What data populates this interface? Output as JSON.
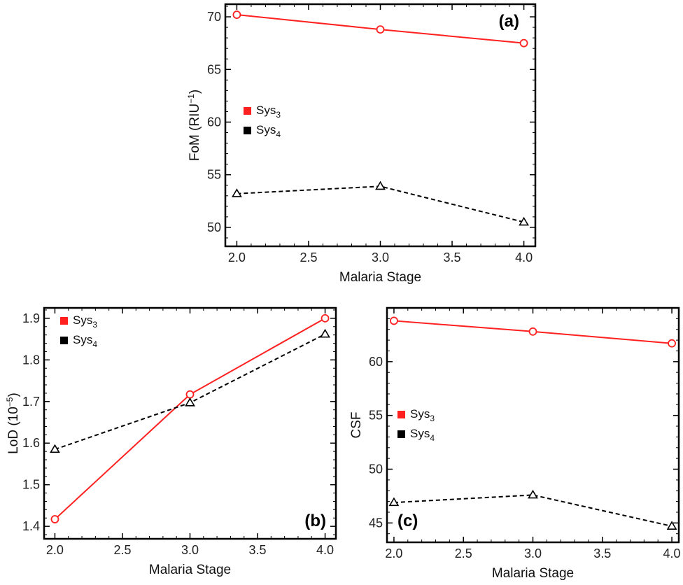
{
  "chart_data": [
    {
      "type": "line",
      "panel_label": "(a)",
      "xlabel": "Malaria Stage",
      "ylabel": "FoM (RIU",
      "ylabel_sup": "−1",
      "ylabel_end": ")",
      "x": [
        2.0,
        3.0,
        4.0
      ],
      "xlim": [
        1.92,
        4.08
      ],
      "ylim": [
        48.2,
        71.2
      ],
      "xticks": [
        2.0,
        2.5,
        3.0,
        3.5,
        4.0
      ],
      "xtick_labels": [
        "2.0",
        "2.5",
        "3.0",
        "3.5",
        "4.0"
      ],
      "yticks": [
        50,
        55,
        60,
        65,
        70
      ],
      "ytick_labels": [
        "50",
        "55",
        "60",
        "65",
        "70"
      ],
      "series": [
        {
          "name": "Sys",
          "sub": "3",
          "color": "#ff2020",
          "marker": "circle",
          "dash": "solid",
          "values": [
            70.2,
            68.8,
            67.5
          ]
        },
        {
          "name": "Sys",
          "sub": "4",
          "color": "#000000",
          "marker": "triangle",
          "dash": "dashed",
          "values": [
            53.2,
            53.9,
            50.5
          ]
        }
      ]
    },
    {
      "type": "line",
      "panel_label": "(b)",
      "xlabel": "Malaria Stage",
      "ylabel": "LoD (10",
      "ylabel_sup": "−5",
      "ylabel_end": ")",
      "x": [
        2.0,
        3.0,
        4.0
      ],
      "xlim": [
        1.92,
        4.08
      ],
      "ylim": [
        1.37,
        1.925
      ],
      "xticks": [
        2.0,
        2.5,
        3.0,
        3.5,
        4.0
      ],
      "xtick_labels": [
        "2.0",
        "2.5",
        "3.0",
        "3.5",
        "4.0"
      ],
      "yticks": [
        1.4,
        1.5,
        1.6,
        1.7,
        1.8,
        1.9
      ],
      "ytick_labels": [
        "1.4",
        "1.5",
        "1.6",
        "1.7",
        "1.8",
        "1.9"
      ],
      "series": [
        {
          "name": "Sys",
          "sub": "3",
          "color": "#ff2020",
          "marker": "circle",
          "dash": "solid",
          "values": [
            1.417,
            1.717,
            1.9
          ]
        },
        {
          "name": "Sys",
          "sub": "4",
          "color": "#000000",
          "marker": "triangle",
          "dash": "dashed",
          "values": [
            1.585,
            1.697,
            1.862
          ]
        }
      ]
    },
    {
      "type": "line",
      "panel_label": "(c)",
      "xlabel": "Malaria Stage",
      "ylabel": "CSF",
      "ylabel_sup": "",
      "ylabel_end": "",
      "x": [
        2.0,
        3.0,
        4.0
      ],
      "xlim": [
        1.95,
        4.05
      ],
      "ylim": [
        43.2,
        65.0
      ],
      "xticks": [
        2.0,
        2.5,
        3.0,
        3.5,
        4.0
      ],
      "xtick_labels": [
        "2.0",
        "2.5",
        "3.0",
        "3.5",
        "4.0"
      ],
      "yticks": [
        45,
        50,
        55,
        60
      ],
      "ytick_labels": [
        "45",
        "50",
        "55",
        "60"
      ],
      "series": [
        {
          "name": "Sys",
          "sub": "3",
          "color": "#ff2020",
          "marker": "circle",
          "dash": "solid",
          "values": [
            63.8,
            62.8,
            61.7
          ]
        },
        {
          "name": "Sys",
          "sub": "4",
          "color": "#000000",
          "marker": "triangle",
          "dash": "dashed",
          "values": [
            46.9,
            47.6,
            44.7
          ]
        }
      ]
    }
  ]
}
